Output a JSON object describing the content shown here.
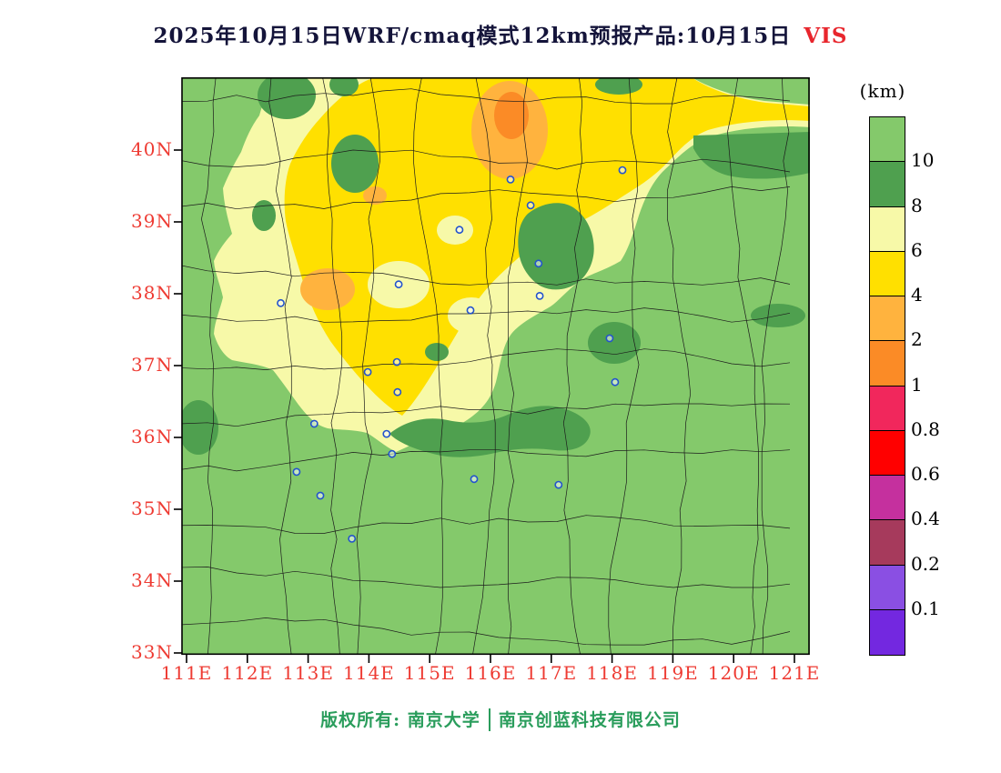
{
  "title": {
    "main": "2025年10月15日WRF/cmaq模式12km预报产品:10月15日",
    "suffix": "VIS"
  },
  "colors": {
    "title_text": "#14143a",
    "vis_red": "#e8262d",
    "axis_red": "#ee3b33",
    "copyright_green": "#2a9d5c",
    "map_green": "#84c96b",
    "map_dark_green": "#4fa04f",
    "map_pale_yellow": "#f7f9a8",
    "map_yellow": "#ffe000",
    "map_light_orange": "#ffb33e",
    "map_orange": "#fb8b26",
    "boundary_black": "#1c1c1c",
    "station_blue": "#2353cd"
  },
  "axes": {
    "lat_ticks": [
      "40N",
      "39N",
      "38N",
      "37N",
      "36N",
      "35N",
      "34N",
      "33N"
    ],
    "lon_ticks": [
      "111E",
      "112E",
      "113E",
      "114E",
      "115E",
      "116E",
      "117E",
      "118E",
      "119E",
      "120E",
      "121E"
    ]
  },
  "legend": {
    "unit": "(km)",
    "labels": [
      "10",
      "8",
      "6",
      "4",
      "2",
      "1",
      "0.8",
      "0.6",
      "0.4",
      "0.2",
      "0.1"
    ],
    "colors": [
      "#84c96b",
      "#4fa04f",
      "#f7f9a8",
      "#ffe000",
      "#ffb33e",
      "#fb8b26",
      "#f1275c",
      "#ff0000",
      "#c5309e",
      "#a63a5c",
      "#8a4fe3",
      "#7328e0"
    ]
  },
  "footer": {
    "owner": "版权所有: 南京大学",
    "company": "南京创蓝科技有限公司"
  },
  "chart_data": {
    "type": "heatmap",
    "title": "2025年10月15日WRF/cmaq模式12km预报产品:10月15日 VIS",
    "variable": "VIS",
    "unit": "km",
    "x_tick_labels": [
      "111E",
      "112E",
      "113E",
      "114E",
      "115E",
      "116E",
      "117E",
      "118E",
      "119E",
      "120E",
      "121E"
    ],
    "y_tick_labels": [
      "33N",
      "34N",
      "35N",
      "36N",
      "37N",
      "38N",
      "39N",
      "40N"
    ],
    "x_range_deg": [
      110.9,
      121.3
    ],
    "y_range_deg": [
      32.95,
      41.05
    ],
    "levels": [
      0.1,
      0.2,
      0.4,
      0.6,
      0.8,
      1,
      2,
      4,
      6,
      8,
      10
    ],
    "palette_high_to_low": [
      "#84c96b",
      "#4fa04f",
      "#f7f9a8",
      "#ffe000",
      "#ffb33e",
      "#fb8b26",
      "#f1275c",
      "#ff0000",
      "#c5309e",
      "#a63a5c",
      "#8a4fe3",
      "#7328e0"
    ],
    "regions_summary": [
      {
        "range_km": ">10",
        "color": "#84c96b",
        "coverage": "south of ~36.3N and east of ~118E"
      },
      {
        "range_km": "8-10",
        "color": "#4fa04f",
        "coverage": "patches near 117E/38.8N, band along ~36.3N, 118E/37.3N, band along top-right ~40.5N, top-left corner"
      },
      {
        "range_km": "6-8",
        "color": "#f7f9a8",
        "coverage": "broad northwest area ~36.5-41N, 111.5-114E fringe of yellow core"
      },
      {
        "range_km": "4-6",
        "color": "#ffe000",
        "coverage": "core ~37-41N, 113-118E and thin band along ~40.5N to 121E"
      },
      {
        "range_km": "2-4",
        "color": "#ffb33e",
        "coverage": "patches near 116.3E/40.4N, 113.4E/38.2N, 114.1E/39.3N"
      }
    ],
    "stations": [
      [
        116.33,
        39.59
      ],
      [
        118.17,
        39.72
      ],
      [
        116.66,
        39.23
      ],
      [
        115.49,
        38.89
      ],
      [
        116.79,
        38.42
      ],
      [
        114.49,
        38.13
      ],
      [
        116.81,
        37.97
      ],
      [
        115.67,
        37.77
      ],
      [
        112.55,
        37.87
      ],
      [
        117.96,
        37.38
      ],
      [
        114.46,
        37.05
      ],
      [
        113.98,
        36.91
      ],
      [
        114.47,
        36.63
      ],
      [
        118.05,
        36.77
      ],
      [
        113.1,
        36.19
      ],
      [
        114.29,
        36.05
      ],
      [
        114.38,
        35.77
      ],
      [
        112.81,
        35.52
      ],
      [
        113.2,
        35.19
      ],
      [
        115.73,
        35.42
      ],
      [
        117.12,
        35.34
      ],
      [
        113.72,
        34.59
      ]
    ]
  }
}
